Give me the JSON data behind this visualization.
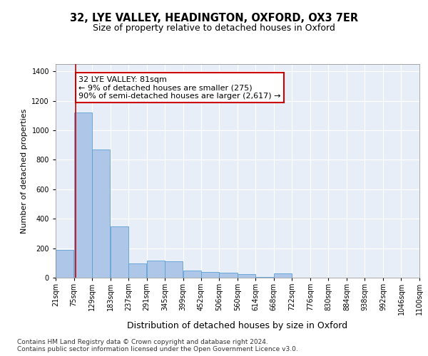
{
  "title": "32, LYE VALLEY, HEADINGTON, OXFORD, OX3 7ER",
  "subtitle": "Size of property relative to detached houses in Oxford",
  "xlabel": "Distribution of detached houses by size in Oxford",
  "ylabel": "Number of detached properties",
  "footnote": "Contains HM Land Registry data © Crown copyright and database right 2024.\nContains public sector information licensed under the Open Government Licence v3.0.",
  "bar_edges": [
    21,
    75,
    129,
    183,
    237,
    291,
    345,
    399,
    452,
    506,
    560,
    614,
    668,
    722,
    776,
    830,
    884,
    938,
    992,
    1046,
    1100
  ],
  "bar_heights": [
    190,
    1120,
    870,
    350,
    95,
    115,
    110,
    50,
    40,
    35,
    25,
    5,
    30,
    0,
    0,
    0,
    0,
    0,
    0,
    0
  ],
  "bar_color": "#aec6e8",
  "bar_edge_color": "#5a9fd4",
  "property_size": 81,
  "annotation_text": "32 LYE VALLEY: 81sqm\n← 9% of detached houses are smaller (275)\n90% of semi-detached houses are larger (2,617) →",
  "annotation_box_color": "#ffffff",
  "annotation_box_edgecolor": "#cc0000",
  "vline_color": "#cc0000",
  "ylim": [
    0,
    1450
  ],
  "yticks": [
    0,
    200,
    400,
    600,
    800,
    1000,
    1200,
    1400
  ],
  "background_color": "#e8eef7",
  "title_fontsize": 10.5,
  "subtitle_fontsize": 9,
  "tick_label_fontsize": 7,
  "ylabel_fontsize": 8,
  "xlabel_fontsize": 9,
  "annotation_fontsize": 8,
  "footnote_fontsize": 6.5
}
